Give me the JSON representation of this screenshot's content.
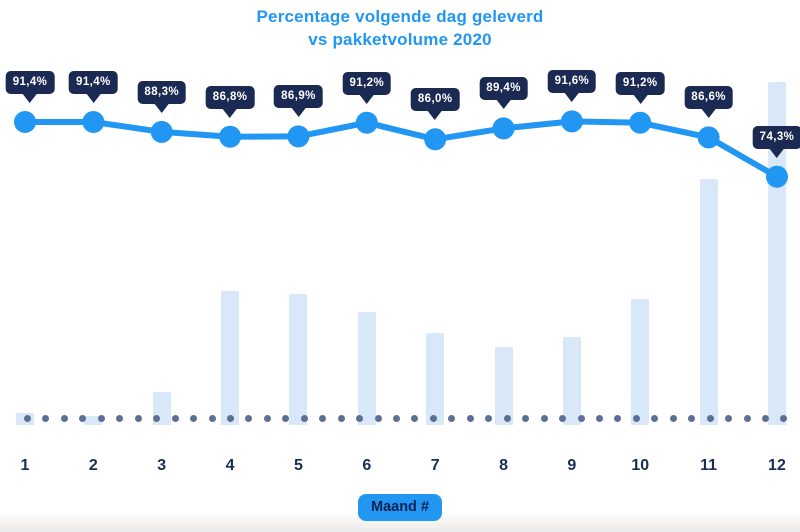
{
  "title": {
    "line1": "Percentage volgende dag geleverd",
    "line2": "vs pakketvolume 2020"
  },
  "x_axis": {
    "label": "Maand #",
    "ticks": [
      "1",
      "2",
      "3",
      "4",
      "5",
      "6",
      "7",
      "8",
      "9",
      "10",
      "11",
      "12"
    ]
  },
  "chart_data": {
    "type": "combo",
    "title": "Percentage volgende dag geleverd vs pakketvolume 2020",
    "categories": [
      "1",
      "2",
      "3",
      "4",
      "5",
      "6",
      "7",
      "8",
      "9",
      "10",
      "11",
      "12"
    ],
    "xlabel": "Maand #",
    "grid": false,
    "legend": "none",
    "baseline_style": "dotted",
    "series": [
      {
        "name": "Percentage volgende dag geleverd",
        "type": "line",
        "unit": "%",
        "ylim": [
          70,
          95
        ],
        "values": [
          91.4,
          91.4,
          88.3,
          86.8,
          86.9,
          91.2,
          86.0,
          89.4,
          91.6,
          91.2,
          86.6,
          74.3
        ],
        "labels": [
          "91,4%",
          "91,4%",
          "88,3%",
          "86,8%",
          "86,9%",
          "91,2%",
          "86,0%",
          "89,4%",
          "91,6%",
          "91,2%",
          "86,6%",
          "74,3%"
        ]
      },
      {
        "name": "Pakketvolume 2020",
        "type": "bar",
        "unit": "relative",
        "values": [
          3.5,
          2.6,
          9.6,
          39.1,
          38.2,
          32.9,
          26.8,
          22.7,
          25.7,
          36.7,
          71.7,
          100
        ]
      }
    ]
  },
  "colors": {
    "accent_blue": "#2196f3",
    "tooltip_navy": "#1b2a52",
    "bar_light_blue": "#d9e8f8",
    "baseline_dot_slate": "#5c6f94",
    "tick_navy": "#1b2d55"
  }
}
